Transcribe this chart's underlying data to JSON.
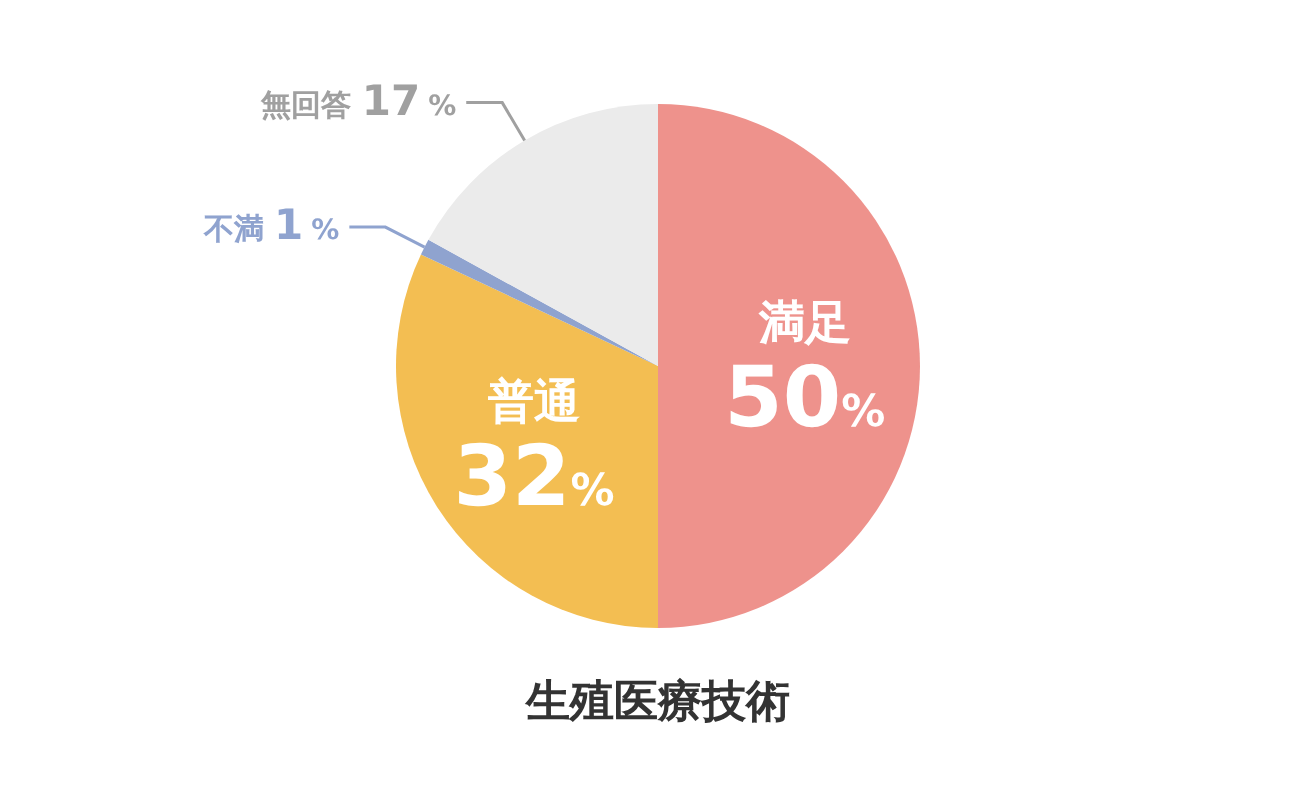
{
  "chart_data": {
    "type": "pie",
    "title": "生殖医療技術",
    "categories": [
      "満足",
      "普通",
      "不満",
      "無回答"
    ],
    "values": [
      50,
      32,
      1,
      17
    ],
    "value_labels": [
      "50%",
      "32%",
      "1%",
      "17%"
    ],
    "colors": [
      "#ee928c",
      "#f3be52",
      "#8fa3cf",
      "#ebebeb"
    ]
  }
}
